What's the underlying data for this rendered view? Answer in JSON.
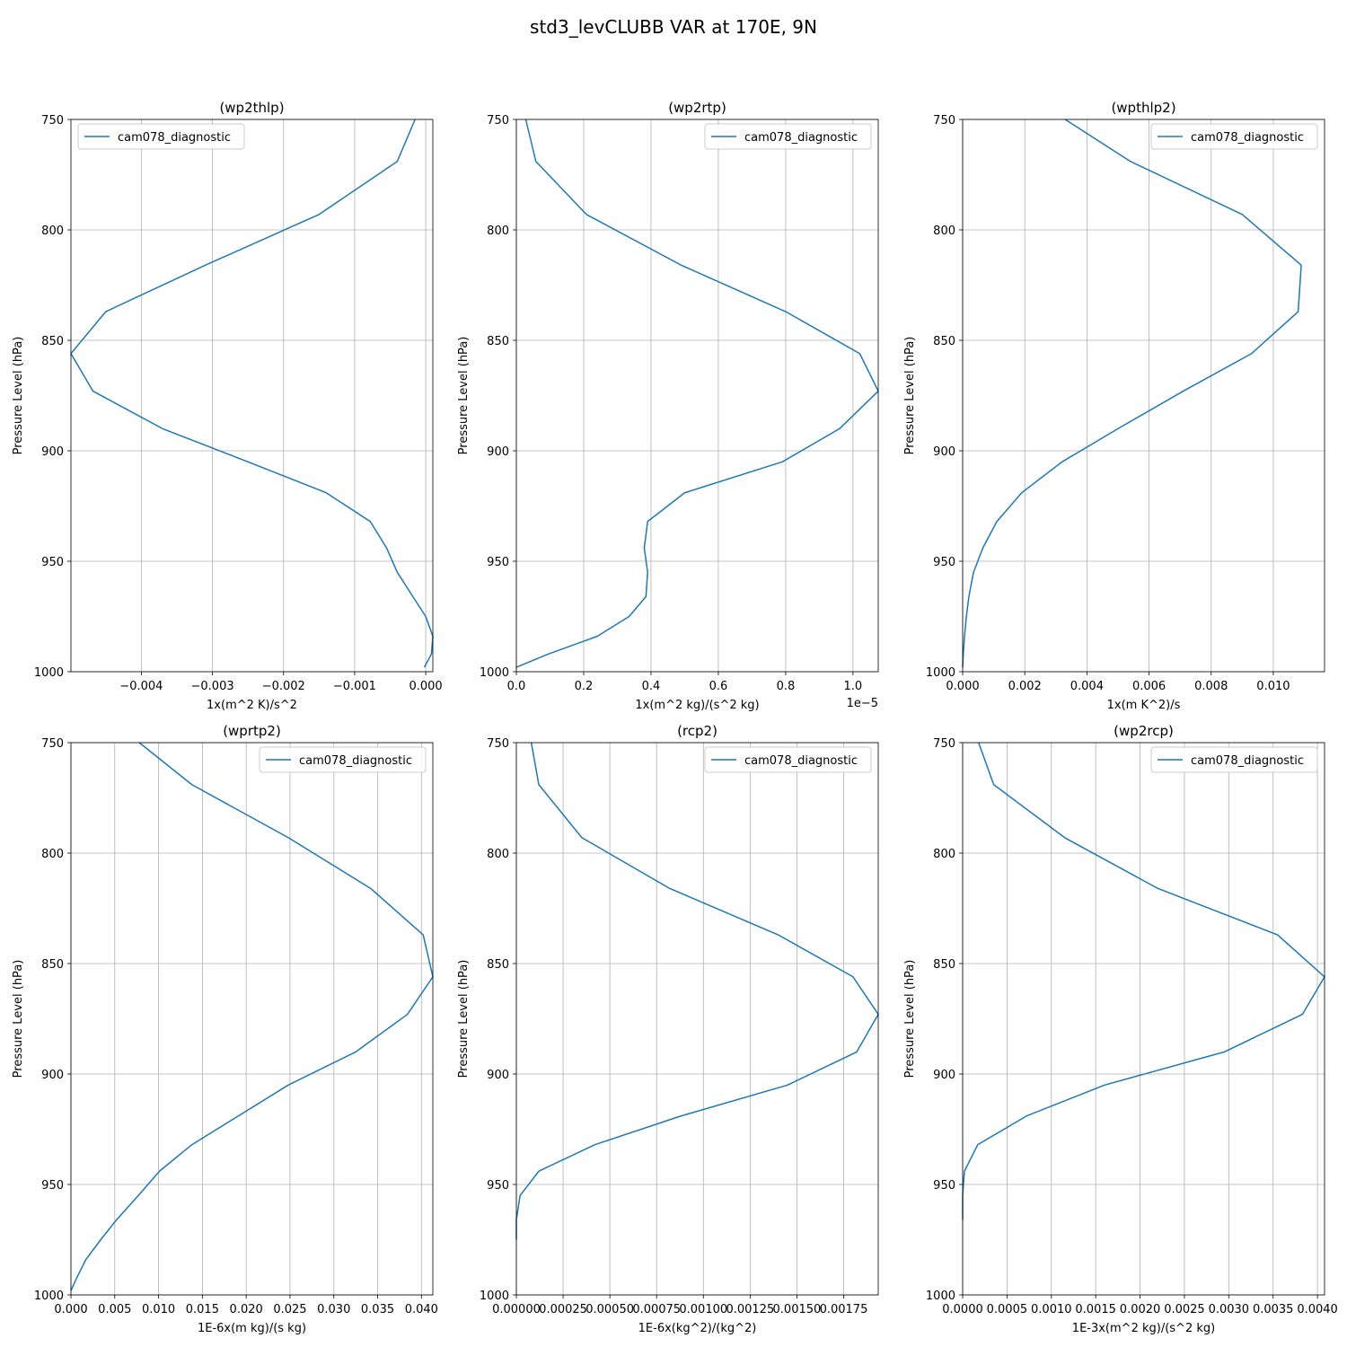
{
  "figure": {
    "suptitle": "std3_levCLUBB VAR at 170E, 9N",
    "line_color": "#1f77b4",
    "grid_color": "#b0b0b0"
  },
  "chart_data": [
    {
      "type": "line",
      "title": "(wp2thlp)",
      "xlabel": "1x(m^2 K)/s^2",
      "ylabel": "Pressure Level (hPa)",
      "xlim": [
        -0.00499,
        0.0001
      ],
      "ylim": [
        1000,
        750
      ],
      "xticks": [
        -0.004,
        -0.003,
        -0.002,
        -0.001,
        0.0
      ],
      "xtick_labels": [
        "−0.004",
        "−0.003",
        "−0.002",
        "−0.001",
        "0.000"
      ],
      "offset_text": "",
      "yticks": [
        750,
        800,
        850,
        900,
        950,
        1000
      ],
      "grid": true,
      "legend": "upper left",
      "series": [
        {
          "name": "cam078_diagnostic",
          "x": [
            -0.00015,
            -0.0004,
            -0.0015,
            -0.0031,
            -0.0045,
            -0.00499,
            -0.00468,
            -0.0037,
            -0.0025,
            -0.0014,
            -0.00078,
            -0.00055,
            -0.0004,
            -0.00018,
            0.0,
            0.0001,
            8e-05,
            -2e-05
          ],
          "y": [
            750,
            769,
            793,
            816,
            837,
            856,
            873,
            890,
            905,
            919,
            932,
            944,
            955,
            966,
            975,
            984,
            992,
            998
          ]
        }
      ]
    },
    {
      "type": "line",
      "title": "(wp2rtp)",
      "xlabel": "1x(m^2 kg)/(s^2 kg)",
      "ylabel": "Pressure Level (hPa)",
      "xlim": [
        0,
        1.075e-05
      ],
      "ylim": [
        1000,
        750
      ],
      "xticks": [
        0,
        2e-06,
        4e-06,
        6e-06,
        8e-06,
        1e-05
      ],
      "xtick_labels": [
        "0.0",
        "0.2",
        "0.4",
        "0.6",
        "0.8",
        "1.0"
      ],
      "offset_text": "1e−5",
      "yticks": [
        750,
        800,
        850,
        900,
        950,
        1000
      ],
      "grid": true,
      "legend": "upper right",
      "series": [
        {
          "name": "cam078_diagnostic",
          "x": [
            2.8e-07,
            5.8e-07,
            2.08e-06,
            4.9e-06,
            8e-06,
            1.02e-05,
            1.075e-05,
            9.6e-06,
            7.9e-06,
            5e-06,
            3.9e-06,
            3.8e-06,
            3.9e-06,
            3.85e-06,
            3.35e-06,
            2.4e-06,
            9.5e-07,
            0.0
          ],
          "y": [
            750,
            769,
            793,
            816,
            837,
            856,
            873,
            890,
            905,
            919,
            932,
            944,
            955,
            966,
            975,
            984,
            992,
            998
          ]
        }
      ]
    },
    {
      "type": "line",
      "title": "(wpthlp2)",
      "xlabel": "1x(m K^2)/s",
      "ylabel": "Pressure Level (hPa)",
      "xlim": [
        0,
        0.01165
      ],
      "ylim": [
        1000,
        750
      ],
      "xticks": [
        0,
        0.002,
        0.004,
        0.006,
        0.008,
        0.01
      ],
      "xtick_labels": [
        "0.000",
        "0.002",
        "0.004",
        "0.006",
        "0.008",
        "0.010"
      ],
      "offset_text": "",
      "yticks": [
        750,
        800,
        850,
        900,
        950,
        1000
      ],
      "grid": true,
      "legend": "upper right",
      "series": [
        {
          "name": "cam078_diagnostic",
          "x": [
            0.0033,
            0.0054,
            0.009,
            0.0109,
            0.0108,
            0.0093,
            0.0071,
            0.005,
            0.0032,
            0.0019,
            0.0011,
            0.00065,
            0.00035,
            0.0002,
            0.00012,
            6e-05,
            2e-05,
            0.0
          ],
          "y": [
            750,
            769,
            793,
            816,
            837,
            856,
            873,
            890,
            905,
            919,
            932,
            944,
            955,
            966,
            975,
            984,
            992,
            998
          ]
        }
      ]
    },
    {
      "type": "line",
      "title": "(wprtp2)",
      "xlabel": "1E-6x(m kg)/(s kg)",
      "ylabel": "Pressure Level (hPa)",
      "xlim": [
        0,
        0.0413
      ],
      "ylim": [
        1000,
        750
      ],
      "xticks": [
        0,
        0.005,
        0.01,
        0.015,
        0.02,
        0.025,
        0.03,
        0.035,
        0.04
      ],
      "xtick_labels": [
        "0.000",
        "0.005",
        "0.010",
        "0.015",
        "0.020",
        "0.025",
        "0.030",
        "0.035",
        "0.040"
      ],
      "offset_text": "",
      "yticks": [
        750,
        800,
        850,
        900,
        950,
        1000
      ],
      "grid": true,
      "legend": "upper right",
      "series": [
        {
          "name": "cam078_diagnostic",
          "x": [
            0.0078,
            0.0138,
            0.0248,
            0.0342,
            0.0402,
            0.0413,
            0.0384,
            0.0325,
            0.0248,
            0.0191,
            0.0138,
            0.0101,
            0.0077,
            0.0052,
            0.0034,
            0.0017,
            0.0007,
            0.0
          ],
          "y": [
            750,
            769,
            793,
            816,
            837,
            856,
            873,
            890,
            905,
            919,
            932,
            944,
            955,
            966,
            975,
            984,
            992,
            998
          ]
        }
      ]
    },
    {
      "type": "line",
      "title": "(rcp2)",
      "xlabel": "1E-6x(kg^2)/(kg^2)",
      "ylabel": "Pressure Level (hPa)",
      "xlim": [
        0,
        0.001935
      ],
      "ylim": [
        1000,
        750
      ],
      "xticks": [
        0,
        0.00025,
        0.0005,
        0.00075,
        0.001,
        0.00125,
        0.0015,
        0.00175
      ],
      "xtick_labels": [
        "0.00000",
        "0.00025",
        "0.00050",
        "0.00075",
        "0.00100",
        "0.00125",
        "0.00150",
        "0.00175"
      ],
      "offset_text": "",
      "yticks": [
        750,
        800,
        850,
        900,
        950,
        1000
      ],
      "grid": true,
      "legend": "upper right",
      "series": [
        {
          "name": "cam078_diagnostic",
          "x": [
            8e-05,
            0.00012,
            0.00035,
            0.00082,
            0.0014,
            0.0018,
            0.001935,
            0.00182,
            0.00145,
            0.00088,
            0.00042,
            0.00012,
            2e-05,
            0.0,
            0.0
          ],
          "y": [
            750,
            769,
            793,
            816,
            837,
            856,
            873,
            890,
            905,
            919,
            932,
            944,
            955,
            966,
            975
          ]
        }
      ]
    },
    {
      "type": "line",
      "title": "(wp2rcp)",
      "xlabel": "1E-3x(m^2 kg)/(s^2 kg)",
      "ylabel": "Pressure Level (hPa)",
      "xlim": [
        0,
        0.00408
      ],
      "ylim": [
        1000,
        750
      ],
      "xticks": [
        0,
        0.0005,
        0.001,
        0.0015,
        0.002,
        0.0025,
        0.003,
        0.0035,
        0.004
      ],
      "xtick_labels": [
        "0.0000",
        "0.0005",
        "0.0010",
        "0.0015",
        "0.0020",
        "0.0025",
        "0.0030",
        "0.0035",
        "0.0040"
      ],
      "offset_text": "",
      "yticks": [
        750,
        800,
        850,
        900,
        950,
        1000
      ],
      "grid": true,
      "legend": "upper right",
      "series": [
        {
          "name": "cam078_diagnostic",
          "x": [
            0.00018,
            0.00035,
            0.00115,
            0.0022,
            0.00355,
            0.00408,
            0.00383,
            0.00295,
            0.0016,
            0.00072,
            0.00017,
            2e-05,
            0.0,
            0.0
          ],
          "y": [
            750,
            769,
            793,
            816,
            837,
            856,
            873,
            890,
            905,
            919,
            932,
            944,
            955,
            966
          ]
        }
      ]
    }
  ]
}
